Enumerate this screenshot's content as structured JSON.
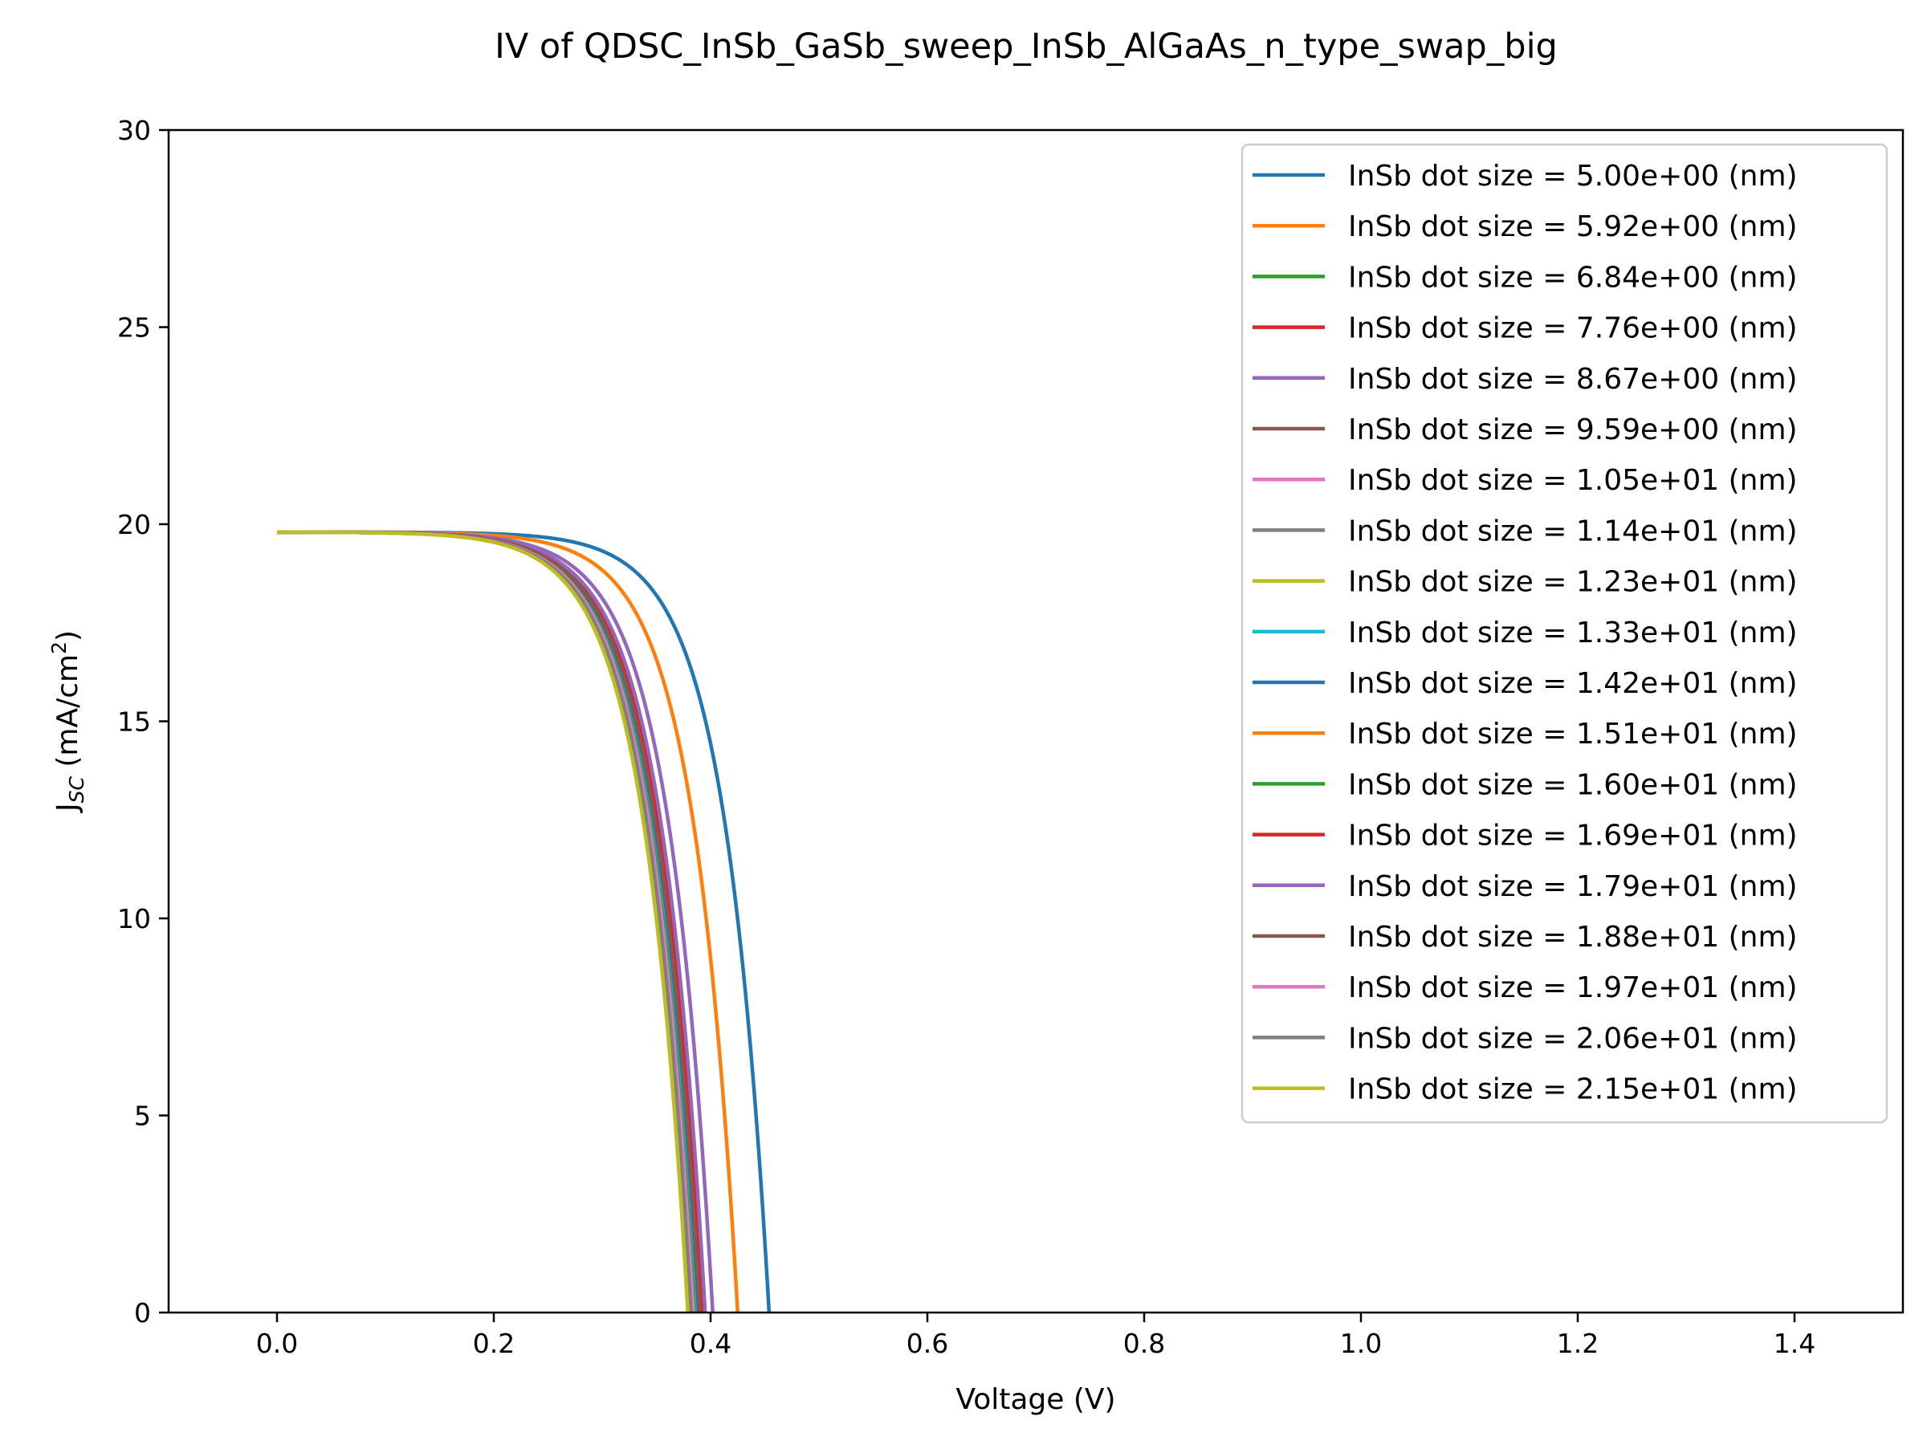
{
  "chart_data": {
    "type": "line",
    "title": "IV of QDSC_InSb_GaSb_sweep_InSb_AlGaAs_n_type_swap_big",
    "xlabel": "Voltage (V)",
    "ylabel_main": "J",
    "ylabel_sub": "SC",
    "ylabel_unit": " (mA/cm",
    "ylabel_sup": "2",
    "ylabel_close": ")",
    "xlim": [
      -0.1,
      1.5
    ],
    "ylim": [
      0,
      30
    ],
    "xticks": [
      0.0,
      0.2,
      0.4,
      0.6,
      0.8,
      1.0,
      1.2,
      1.4
    ],
    "xtick_labels": [
      "0.0",
      "0.2",
      "0.4",
      "0.6",
      "0.8",
      "1.0",
      "1.2",
      "1.4"
    ],
    "yticks": [
      0,
      5,
      10,
      15,
      20,
      25,
      30
    ],
    "ytick_labels": [
      "0",
      "5",
      "10",
      "15",
      "20",
      "25",
      "30"
    ],
    "grid": false,
    "legend_position": "top-right",
    "jsc": 19.8,
    "series": [
      {
        "name": "InSb dot size = 5.00e+00 (nm)",
        "color": "#1f77b4",
        "voc": 0.454,
        "n": 1.6
      },
      {
        "name": "InSb dot size = 5.92e+00 (nm)",
        "color": "#ff7f0e",
        "voc": 0.425,
        "n": 1.6
      },
      {
        "name": "InSb dot size = 6.84e+00 (nm)",
        "color": "#2ca02c",
        "voc": 0.384,
        "n": 1.6
      },
      {
        "name": "InSb dot size = 7.76e+00 (nm)",
        "color": "#d62728",
        "voc": 0.394,
        "n": 1.6
      },
      {
        "name": "InSb dot size = 8.67e+00 (nm)",
        "color": "#9467bd",
        "voc": 0.402,
        "n": 1.6
      },
      {
        "name": "InSb dot size = 9.59e+00 (nm)",
        "color": "#8c564b",
        "voc": 0.393,
        "n": 1.6
      },
      {
        "name": "InSb dot size = 1.05e+01 (nm)",
        "color": "#e377c2",
        "voc": 0.386,
        "n": 1.6
      },
      {
        "name": "InSb dot size = 1.14e+01 (nm)",
        "color": "#7f7f7f",
        "voc": 0.383,
        "n": 1.6
      },
      {
        "name": "InSb dot size = 1.23e+01 (nm)",
        "color": "#bcbd22",
        "voc": 0.381,
        "n": 1.6
      },
      {
        "name": "InSb dot size = 1.33e+01 (nm)",
        "color": "#17becf",
        "voc": 0.387,
        "n": 1.6
      },
      {
        "name": "InSb dot size = 1.42e+01 (nm)",
        "color": "#1f77b4",
        "voc": 0.389,
        "n": 1.6
      },
      {
        "name": "InSb dot size = 1.51e+01 (nm)",
        "color": "#ff7f0e",
        "voc": 0.391,
        "n": 1.6
      },
      {
        "name": "InSb dot size = 1.60e+01 (nm)",
        "color": "#2ca02c",
        "voc": 0.385,
        "n": 1.6
      },
      {
        "name": "InSb dot size = 1.69e+01 (nm)",
        "color": "#d62728",
        "voc": 0.392,
        "n": 1.6
      },
      {
        "name": "InSb dot size = 1.79e+01 (nm)",
        "color": "#9467bd",
        "voc": 0.395,
        "n": 1.6
      },
      {
        "name": "InSb dot size = 1.88e+01 (nm)",
        "color": "#8c564b",
        "voc": 0.39,
        "n": 1.6
      },
      {
        "name": "InSb dot size = 1.97e+01 (nm)",
        "color": "#e377c2",
        "voc": 0.384,
        "n": 1.6
      },
      {
        "name": "InSb dot size = 2.06e+01 (nm)",
        "color": "#7f7f7f",
        "voc": 0.382,
        "n": 1.6
      },
      {
        "name": "InSb dot size = 2.15e+01 (nm)",
        "color": "#bcbd22",
        "voc": 0.379,
        "n": 1.6
      }
    ]
  }
}
